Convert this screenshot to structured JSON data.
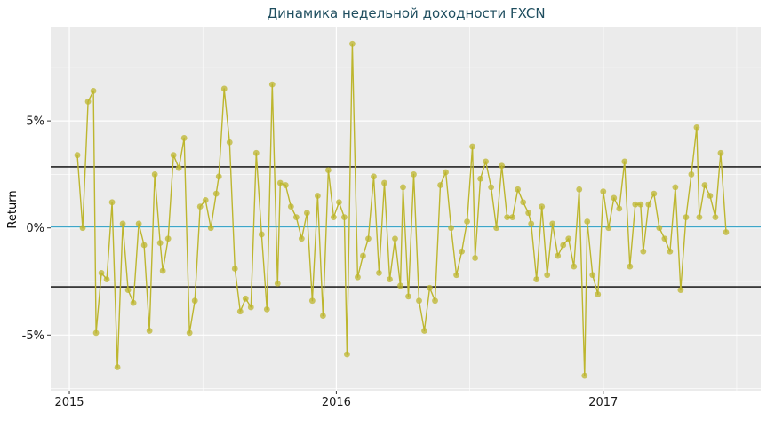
{
  "chart_data": {
    "type": "line",
    "title": "Динамика недельной доходности FXCN",
    "xlabel": "",
    "ylabel": "Return",
    "x_ticks": [
      "2015",
      "2016",
      "2017"
    ],
    "y_ticks": [
      "-5%",
      "0%",
      "5%"
    ],
    "y_tick_values": [
      -5,
      0,
      5
    ],
    "xlim": [
      2014.93,
      2017.59
    ],
    "ylim": [
      -7.6,
      9.4
    ],
    "grid": true,
    "legend": "none",
    "hlines": {
      "mean": 0.05,
      "upper": 2.85,
      "lower": -2.75
    },
    "colors": {
      "series": "#bdb62e",
      "mean_line": "#3fa6c8",
      "band_lines": "#000000",
      "title": "#1f4e5f",
      "panel": "#ebebeb",
      "grid": "#ffffff"
    },
    "series": [
      {
        "x": [
          2015.03,
          2015.05,
          2015.07,
          2015.09,
          2015.1,
          2015.12,
          2015.14,
          2015.16,
          2015.18,
          2015.2,
          2015.22,
          2015.24,
          2015.26,
          2015.28,
          2015.3,
          2015.32,
          2015.34,
          2015.35,
          2015.37,
          2015.39,
          2015.41,
          2015.43,
          2015.45,
          2015.47,
          2015.49,
          2015.51,
          2015.53,
          2015.55,
          2015.56,
          2015.58,
          2015.6,
          2015.62,
          2015.64,
          2015.66,
          2015.68,
          2015.7,
          2015.72,
          2015.74,
          2015.76,
          2015.78,
          2015.79,
          2015.81,
          2015.83,
          2015.85,
          2015.87,
          2015.89,
          2015.91,
          2015.93,
          2015.95,
          2015.97,
          2015.99,
          2016.01,
          2016.03,
          2016.04,
          2016.06,
          2016.08,
          2016.1,
          2016.12,
          2016.14,
          2016.16,
          2016.18,
          2016.2,
          2016.22,
          2016.24,
          2016.25,
          2016.27,
          2016.29,
          2016.31,
          2016.33,
          2016.35,
          2016.37,
          2016.39,
          2016.41,
          2016.43,
          2016.45,
          2016.47,
          2016.49,
          2016.51,
          2016.52,
          2016.54,
          2016.56,
          2016.58,
          2016.6,
          2016.62,
          2016.64,
          2016.66,
          2016.68,
          2016.7,
          2016.72,
          2016.73,
          2016.75,
          2016.77,
          2016.79,
          2016.81,
          2016.83,
          2016.85,
          2016.87,
          2016.89,
          2016.91,
          2016.93,
          2016.94,
          2016.96,
          2016.98,
          2017.0,
          2017.02,
          2017.04,
          2017.06,
          2017.08,
          2017.1,
          2017.12,
          2017.14,
          2017.15,
          2017.17,
          2017.19,
          2017.21,
          2017.23,
          2017.25,
          2017.27,
          2017.29,
          2017.31,
          2017.33,
          2017.35,
          2017.36,
          2017.38,
          2017.4,
          2017.42,
          2017.44,
          2017.46
        ],
        "values": [
          3.4,
          0.0,
          5.9,
          6.4,
          -4.9,
          -2.1,
          -2.4,
          1.2,
          -6.5,
          0.2,
          -2.9,
          -3.5,
          0.2,
          -0.8,
          -4.8,
          2.5,
          -0.7,
          -2.0,
          -0.5,
          3.4,
          2.8,
          4.2,
          -4.9,
          -3.4,
          1.0,
          1.3,
          0.0,
          1.6,
          2.4,
          6.5,
          4.0,
          -1.9,
          -3.9,
          -3.3,
          -3.7,
          3.5,
          -0.3,
          -3.8,
          6.7,
          -2.6,
          2.1,
          2.0,
          1.0,
          0.5,
          -0.5,
          0.7,
          -3.4,
          1.5,
          -4.1,
          2.7,
          0.5,
          1.2,
          0.5,
          -5.9,
          8.6,
          -2.3,
          -1.3,
          -0.5,
          2.4,
          -2.1,
          2.1,
          -2.4,
          -0.5,
          -2.7,
          1.9,
          -3.2,
          2.5,
          -3.4,
          -4.8,
          -2.8,
          -3.4,
          2.0,
          2.6,
          0.0,
          -2.2,
          -1.1,
          0.3,
          3.8,
          -1.4,
          2.3,
          3.1,
          1.9,
          0.0,
          2.9,
          0.5,
          0.5,
          1.8,
          1.2,
          0.7,
          0.2,
          -2.4,
          1.0,
          -2.2,
          0.2,
          -1.3,
          -0.8,
          -0.5,
          -1.8,
          1.8,
          -6.9,
          0.3,
          -2.2,
          -3.1,
          1.7,
          0.0,
          1.4,
          0.9,
          3.1,
          -1.8,
          1.1,
          1.1,
          -1.1,
          1.1,
          1.6,
          0.0,
          -0.5,
          -1.1,
          1.9,
          -2.9,
          0.5,
          2.5,
          4.7,
          0.5,
          2.0,
          1.5,
          0.5,
          3.5,
          -0.2
        ]
      }
    ]
  }
}
